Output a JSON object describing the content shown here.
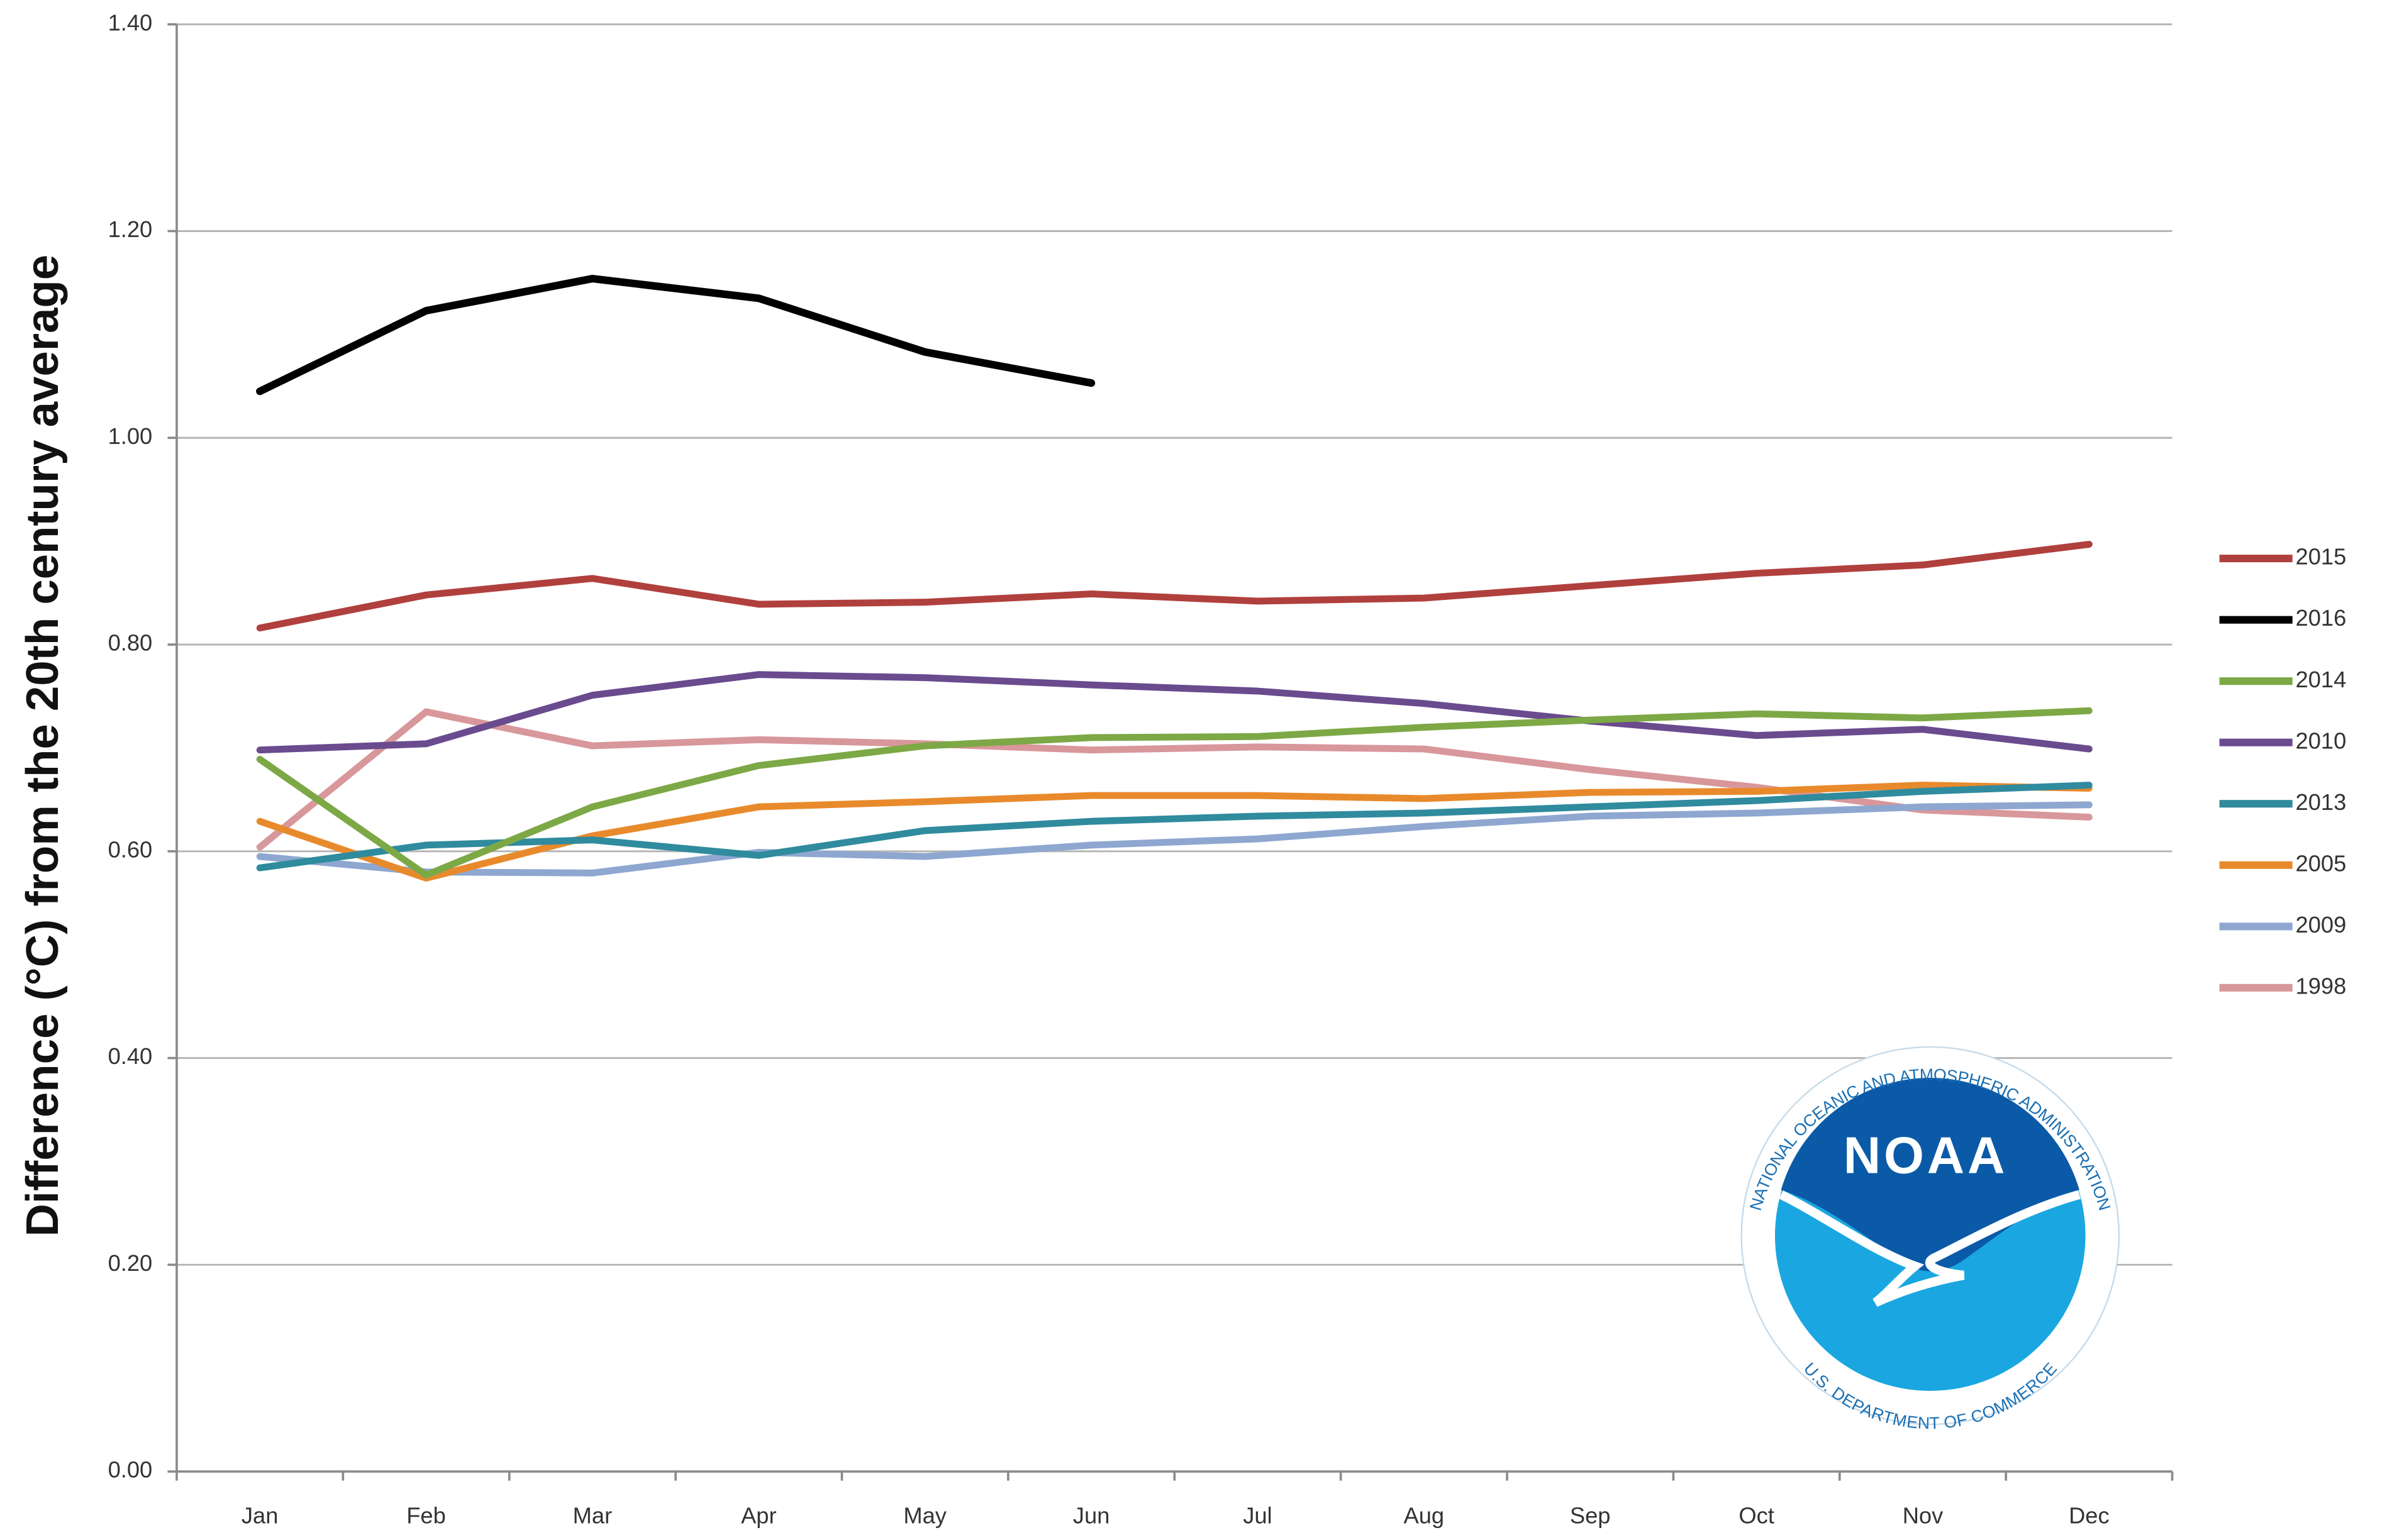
{
  "chart_data": {
    "type": "line",
    "y_label": "Difference (°C) from the 20th century average",
    "categories": [
      "Jan",
      "Feb",
      "Mar",
      "Apr",
      "May",
      "Jun",
      "Jul",
      "Aug",
      "Sep",
      "Oct",
      "Nov",
      "Dec"
    ],
    "ylim": [
      0,
      1.4
    ],
    "yticks": [
      {
        "value": 0,
        "label": "0.00"
      },
      {
        "value": 0.2,
        "label": "0.20"
      },
      {
        "value": 0.4,
        "label": "0.40"
      },
      {
        "value": 0.6,
        "label": "0.60"
      },
      {
        "value": 0.8,
        "label": "0.80"
      },
      {
        "value": 1.0,
        "label": "1.00"
      },
      {
        "value": 1.2,
        "label": "1.20"
      },
      {
        "value": 1.4,
        "label": "1.40"
      }
    ],
    "grid": true,
    "legend": "right",
    "series": [
      {
        "name": "2015",
        "color": "#b0403d",
        "values": [
          0.816,
          0.848,
          0.864,
          0.839,
          0.841,
          0.849,
          0.842,
          0.845,
          0.857,
          0.869,
          0.877,
          0.897
        ]
      },
      {
        "name": "2016",
        "color": "#000000",
        "values": [
          1.045,
          1.123,
          1.154,
          1.135,
          1.083,
          1.053,
          null,
          null,
          null,
          null,
          null,
          null
        ]
      },
      {
        "name": "2014",
        "color": "#7da846",
        "values": [
          0.689,
          0.577,
          0.643,
          0.683,
          0.702,
          0.71,
          0.711,
          0.72,
          0.727,
          0.733,
          0.729,
          0.736
        ]
      },
      {
        "name": "2010",
        "color": "#6a4b8e",
        "values": [
          0.698,
          0.704,
          0.751,
          0.771,
          0.768,
          0.761,
          0.755,
          0.743,
          0.726,
          0.712,
          0.718,
          0.699
        ]
      },
      {
        "name": "2013",
        "color": "#2f8b9d",
        "values": [
          0.584,
          0.606,
          0.611,
          0.596,
          0.62,
          0.629,
          0.634,
          0.637,
          0.643,
          0.649,
          0.658,
          0.664
        ]
      },
      {
        "name": "2005",
        "color": "#e88a2c",
        "values": [
          0.629,
          0.574,
          0.615,
          0.643,
          0.648,
          0.654,
          0.654,
          0.651,
          0.657,
          0.658,
          0.664,
          0.661
        ]
      },
      {
        "name": "2009",
        "color": "#8ea7d0",
        "values": [
          0.595,
          0.58,
          0.579,
          0.599,
          0.595,
          0.606,
          0.612,
          0.624,
          0.634,
          0.637,
          0.643,
          0.645
        ]
      },
      {
        "name": "1998",
        "color": "#d8979b",
        "values": [
          0.604,
          0.735,
          0.702,
          0.708,
          0.704,
          0.698,
          0.701,
          0.699,
          0.679,
          0.662,
          0.64,
          0.633
        ]
      }
    ]
  },
  "logo": {
    "name": "NOAA",
    "top_text": "NATIONAL OCEANIC AND ATMOSPHERIC ADMINISTRATION",
    "bottom_text": "U.S. DEPARTMENT OF COMMERCE"
  }
}
